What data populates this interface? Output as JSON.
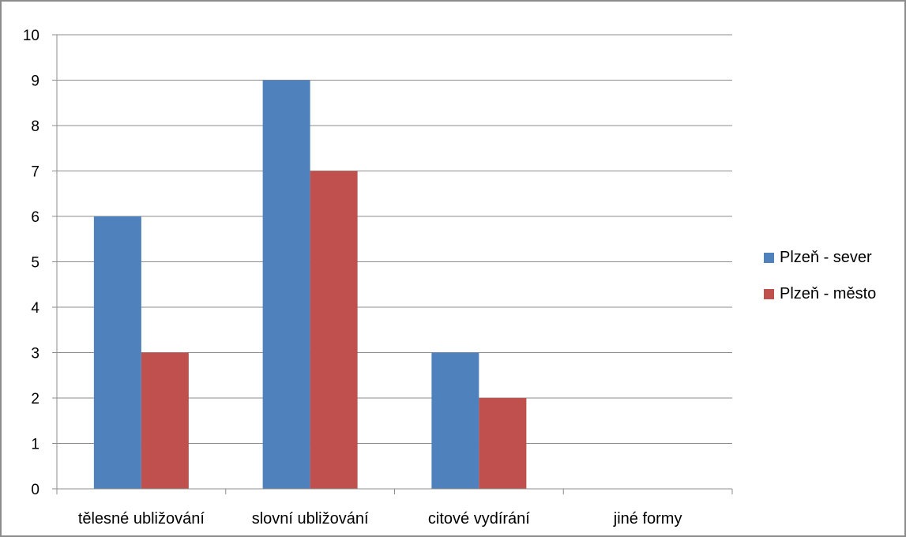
{
  "chart_data": {
    "type": "bar",
    "title": "",
    "xlabel": "",
    "ylabel": "",
    "categories": [
      "tělesné ubližování",
      "slovní ubližování",
      "citové vydírání",
      "jiné formy"
    ],
    "series": [
      {
        "name": "Plzeň - sever",
        "color": "#4f81bd",
        "values": [
          6,
          9,
          3,
          0
        ]
      },
      {
        "name": "Plzeň - město",
        "color": "#c0504d",
        "values": [
          3,
          7,
          2,
          0
        ]
      }
    ],
    "ylim": [
      0,
      10
    ],
    "yticks": [
      0,
      1,
      2,
      3,
      4,
      5,
      6,
      7,
      8,
      9,
      10
    ],
    "grid": true,
    "legend_position": "right"
  }
}
